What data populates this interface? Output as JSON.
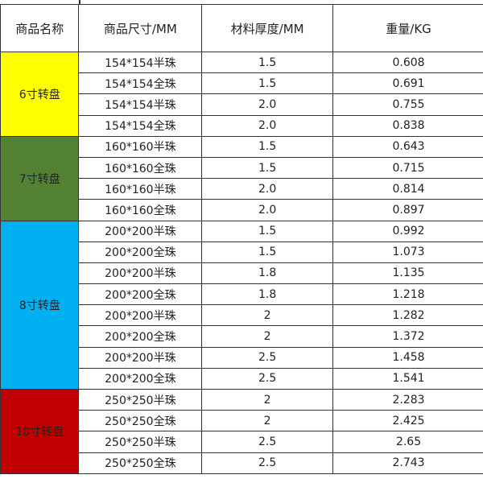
{
  "headers": [
    "商品名称",
    "商品尺寸/MM",
    "材料厚度/MM",
    "重量/KG"
  ],
  "groups": [
    {
      "name": "6寸转盘",
      "color": "#ffff00",
      "rows": [
        [
          "154*154半珠",
          "1.5",
          "0.608"
        ],
        [
          "154*154全珠",
          "1.5",
          "0.691"
        ],
        [
          "154*154半珠",
          "2.0",
          "0.755"
        ],
        [
          "154*154全珠",
          "2.0",
          "0.838"
        ]
      ]
    },
    {
      "name": "7寸转盘",
      "color": "#548235",
      "rows": [
        [
          "160*160半珠",
          "1.5",
          "0.643"
        ],
        [
          "160*160全珠",
          "1.5",
          "0.715"
        ],
        [
          "160*160半珠",
          "2.0",
          "0.814"
        ],
        [
          "160*160全珠",
          "2.0",
          "0.897"
        ]
      ]
    },
    {
      "name": "8寸转盘",
      "color": "#00b0f0",
      "rows": [
        [
          "200*200半珠",
          "1.5",
          "0.992"
        ],
        [
          "200*200全珠",
          "1.5",
          "1.073"
        ],
        [
          "200*200半珠",
          "1.8",
          "1.135"
        ],
        [
          "200*200全珠",
          "1.8",
          "1.218"
        ],
        [
          "200*200半珠",
          "2",
          "1.282"
        ],
        [
          "200*200全珠",
          "2",
          "1.372"
        ],
        [
          "200*200半珠",
          "2.5",
          "1.458"
        ],
        [
          "200*200全珠",
          "2.5",
          "1.541"
        ]
      ]
    },
    {
      "name": "10寸转盘",
      "color": "#c00000",
      "rows": [
        [
          "250*250半珠",
          "2",
          "2.283"
        ],
        [
          "250*250全珠",
          "2",
          "2.425"
        ],
        [
          "250*250半珠",
          "2.5",
          "2.65"
        ],
        [
          "250*250全珠",
          "2.5",
          "2.743"
        ]
      ]
    }
  ]
}
